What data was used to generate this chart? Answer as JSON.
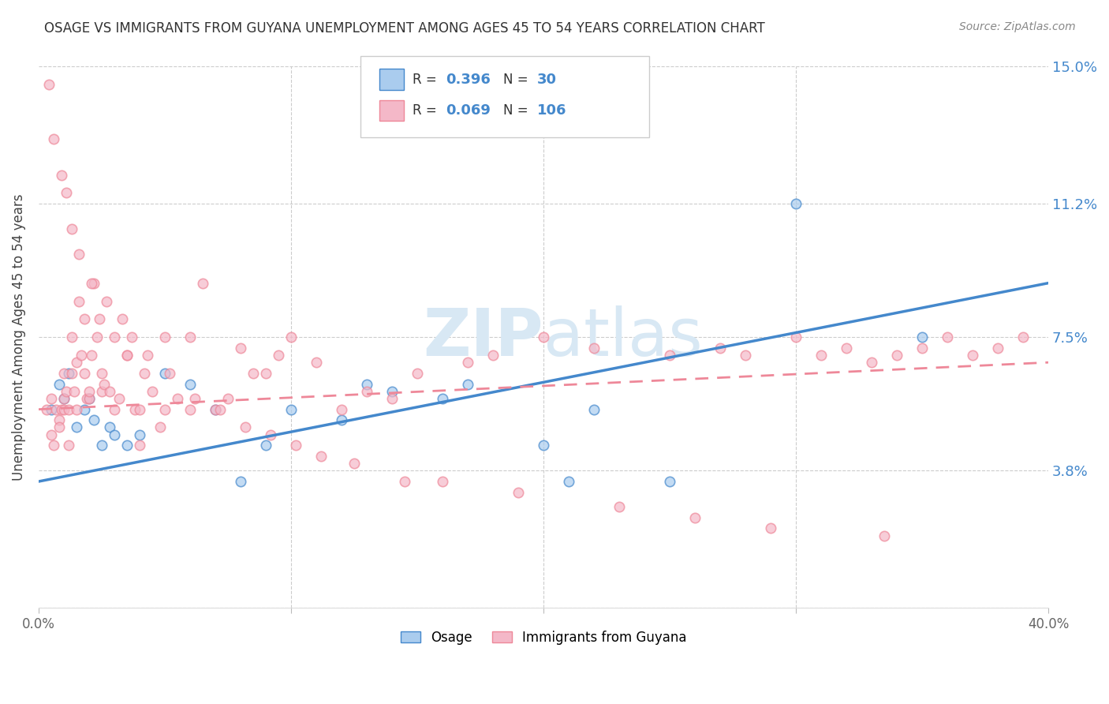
{
  "title": "OSAGE VS IMMIGRANTS FROM GUYANA UNEMPLOYMENT AMONG AGES 45 TO 54 YEARS CORRELATION CHART",
  "source": "Source: ZipAtlas.com",
  "ylabel": "Unemployment Among Ages 45 to 54 years",
  "xlim": [
    0.0,
    40.0
  ],
  "ylim": [
    0.0,
    15.0
  ],
  "yticks": [
    0.0,
    3.8,
    7.5,
    11.2,
    15.0
  ],
  "ytick_labels_right": [
    "",
    "3.8%",
    "7.5%",
    "11.2%",
    "15.0%"
  ],
  "xticks": [
    0.0,
    10.0,
    20.0,
    30.0,
    40.0
  ],
  "xtick_labels": [
    "0.0%",
    "",
    "",
    "",
    "40.0%"
  ],
  "legend_R_blue": "0.396",
  "legend_N_blue": "30",
  "legend_R_pink": "0.069",
  "legend_N_pink": "106",
  "blue_scatter_color": "#aaccee",
  "pink_scatter_color": "#f4b8c8",
  "line_blue_color": "#4488cc",
  "line_pink_color": "#ee8899",
  "r_n_label_color": "#4488cc",
  "r_label_color": "#333333",
  "title_color": "#333333",
  "source_color": "#888888",
  "axis_tick_color": "#4488cc",
  "watermark_color": "#d8e8f4",
  "background_color": "#ffffff",
  "grid_color": "#cccccc",
  "blue_line_start_y": 3.5,
  "blue_line_end_y": 9.0,
  "pink_line_start_y": 5.5,
  "pink_line_end_y": 6.8,
  "osage_x": [
    0.5,
    0.8,
    1.0,
    1.2,
    1.5,
    1.8,
    2.0,
    2.2,
    2.5,
    2.8,
    3.0,
    3.5,
    4.0,
    5.0,
    6.0,
    7.0,
    8.0,
    9.0,
    10.0,
    12.0,
    13.0,
    14.0,
    16.0,
    17.0,
    20.0,
    21.0,
    22.0,
    25.0,
    30.0,
    35.0
  ],
  "osage_y": [
    5.5,
    6.2,
    5.8,
    6.5,
    5.0,
    5.5,
    5.8,
    5.2,
    4.5,
    5.0,
    4.8,
    4.5,
    4.8,
    6.5,
    6.2,
    5.5,
    3.5,
    4.5,
    5.5,
    5.2,
    6.2,
    6.0,
    5.8,
    6.2,
    4.5,
    3.5,
    5.5,
    3.5,
    11.2,
    7.5
  ],
  "guyana_x": [
    0.3,
    0.5,
    0.5,
    0.6,
    0.7,
    0.8,
    0.8,
    0.9,
    1.0,
    1.0,
    1.0,
    1.1,
    1.2,
    1.2,
    1.3,
    1.3,
    1.4,
    1.5,
    1.5,
    1.6,
    1.7,
    1.8,
    1.8,
    1.9,
    2.0,
    2.0,
    2.1,
    2.2,
    2.3,
    2.4,
    2.5,
    2.5,
    2.6,
    2.8,
    3.0,
    3.0,
    3.2,
    3.5,
    3.5,
    3.8,
    4.0,
    4.0,
    4.2,
    4.5,
    4.8,
    5.0,
    5.0,
    5.5,
    6.0,
    6.0,
    6.5,
    7.0,
    7.5,
    8.0,
    8.5,
    9.0,
    9.5,
    10.0,
    11.0,
    12.0,
    13.0,
    14.0,
    15.0,
    17.0,
    18.0,
    20.0,
    22.0,
    25.0,
    27.0,
    28.0,
    30.0,
    31.0,
    32.0,
    33.0,
    34.0,
    35.0,
    36.0,
    37.0,
    38.0,
    39.0,
    0.4,
    0.6,
    0.9,
    1.1,
    1.3,
    1.6,
    2.1,
    2.7,
    3.3,
    3.7,
    4.3,
    5.2,
    6.2,
    7.2,
    8.2,
    9.2,
    10.2,
    11.2,
    12.5,
    14.5,
    16.0,
    19.0,
    23.0,
    26.0,
    29.0,
    33.5
  ],
  "guyana_y": [
    5.5,
    5.8,
    4.8,
    4.5,
    5.5,
    5.2,
    5.0,
    5.5,
    6.5,
    5.8,
    5.5,
    6.0,
    5.5,
    4.5,
    7.5,
    6.5,
    6.0,
    6.8,
    5.5,
    8.5,
    7.0,
    8.0,
    6.5,
    5.8,
    5.8,
    6.0,
    7.0,
    9.0,
    7.5,
    8.0,
    6.5,
    6.0,
    6.2,
    6.0,
    5.5,
    7.5,
    5.8,
    7.0,
    7.0,
    5.5,
    5.5,
    4.5,
    6.5,
    6.0,
    5.0,
    5.5,
    7.5,
    5.8,
    7.5,
    5.5,
    9.0,
    5.5,
    5.8,
    7.2,
    6.5,
    6.5,
    7.0,
    7.5,
    6.8,
    5.5,
    6.0,
    5.8,
    6.5,
    6.8,
    7.0,
    7.5,
    7.2,
    7.0,
    7.2,
    7.0,
    7.5,
    7.0,
    7.2,
    6.8,
    7.0,
    7.2,
    7.5,
    7.0,
    7.2,
    7.5,
    14.5,
    13.0,
    12.0,
    11.5,
    10.5,
    9.8,
    9.0,
    8.5,
    8.0,
    7.5,
    7.0,
    6.5,
    5.8,
    5.5,
    5.0,
    4.8,
    4.5,
    4.2,
    4.0,
    3.5,
    3.5,
    3.2,
    2.8,
    2.5,
    2.2,
    2.0
  ]
}
